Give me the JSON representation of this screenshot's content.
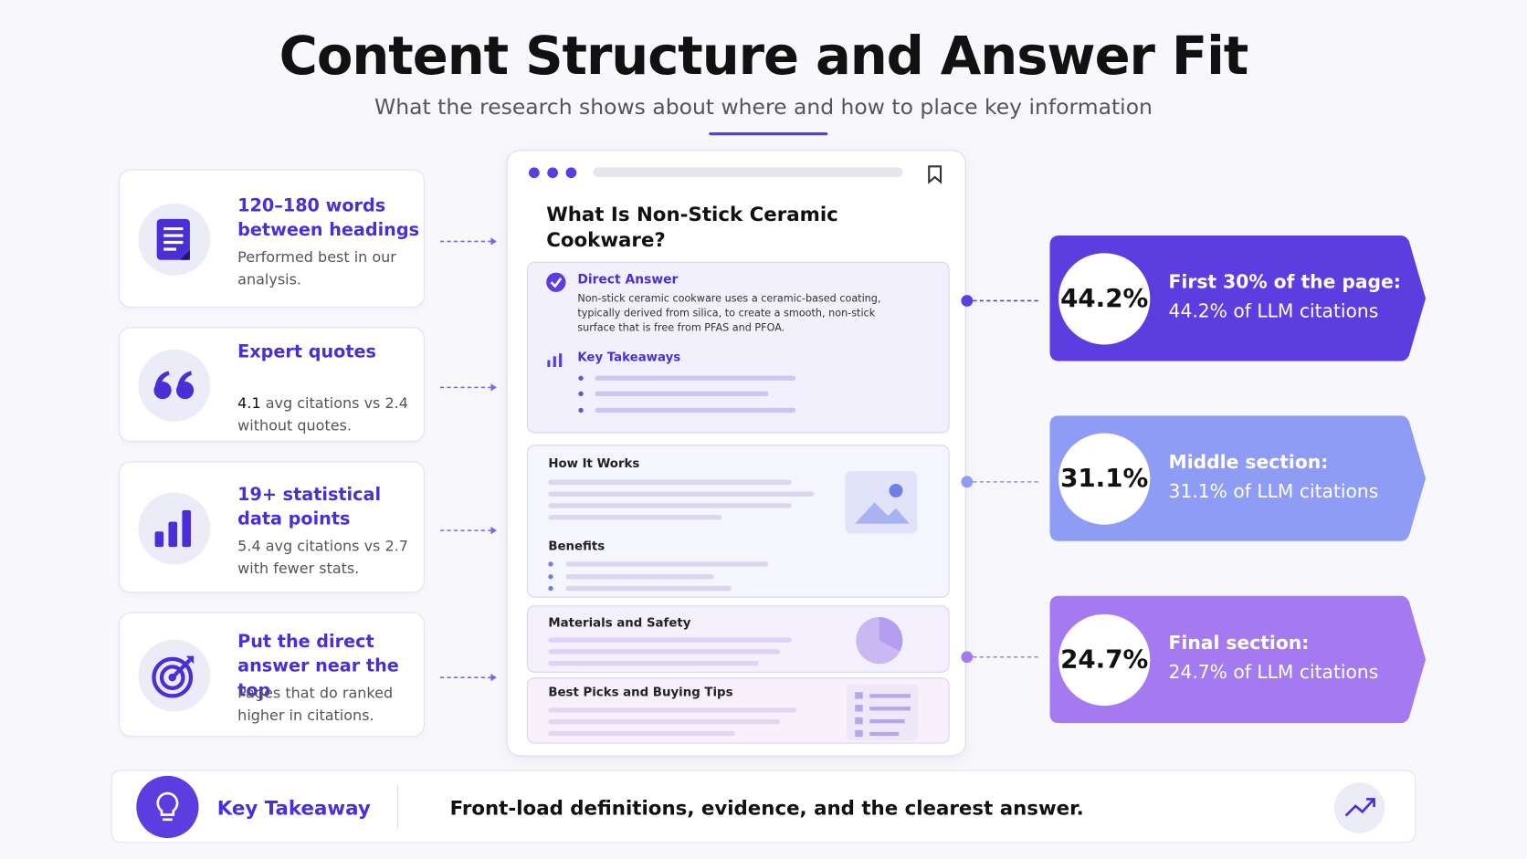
{
  "header": {
    "title": "Content Structure and Answer Fit",
    "subtitle": "What the research shows about where and how to place key information"
  },
  "cards": [
    {
      "title": "120–180 words between headings",
      "text": "Performed best in our analysis."
    },
    {
      "title": "Expert quotes",
      "highlight": "4.1",
      "text": " avg citations vs 2.4 without quotes."
    },
    {
      "title": "19+ statistical data points",
      "text": "5.4 avg citations vs 2.7 with fewer stats."
    },
    {
      "title": "Put the direct answer near the top",
      "text": "Pages that do ranked higher in citations."
    }
  ],
  "mockup": {
    "title": "What Is Non-Stick Ceramic Cookware?",
    "direct_answer": {
      "label": "Direct Answer",
      "text": "Non-stick ceramic cookware uses a ceramic-based coating, typically derived from silica, to create a smooth, non-stick surface that is free from PFAS and PFOA."
    },
    "key_takeaways": "Key Takeaways",
    "sections": [
      "How It Works",
      "Benefits",
      "Materials and Safety",
      "Best Picks and Buying Tips"
    ]
  },
  "stats": [
    {
      "value": "44.2%",
      "title": "First 30% of the page:",
      "text": "44.2% of LLM citations"
    },
    {
      "value": "31.1%",
      "title": "Middle section:",
      "text": "31.1% of LLM citations"
    },
    {
      "value": "24.7%",
      "title": "Final section:",
      "text": "24.7% of LLM citations"
    }
  ],
  "footer": {
    "label": "Key Takeaway",
    "text": "Front-load definitions, evidence, and the clearest answer."
  }
}
